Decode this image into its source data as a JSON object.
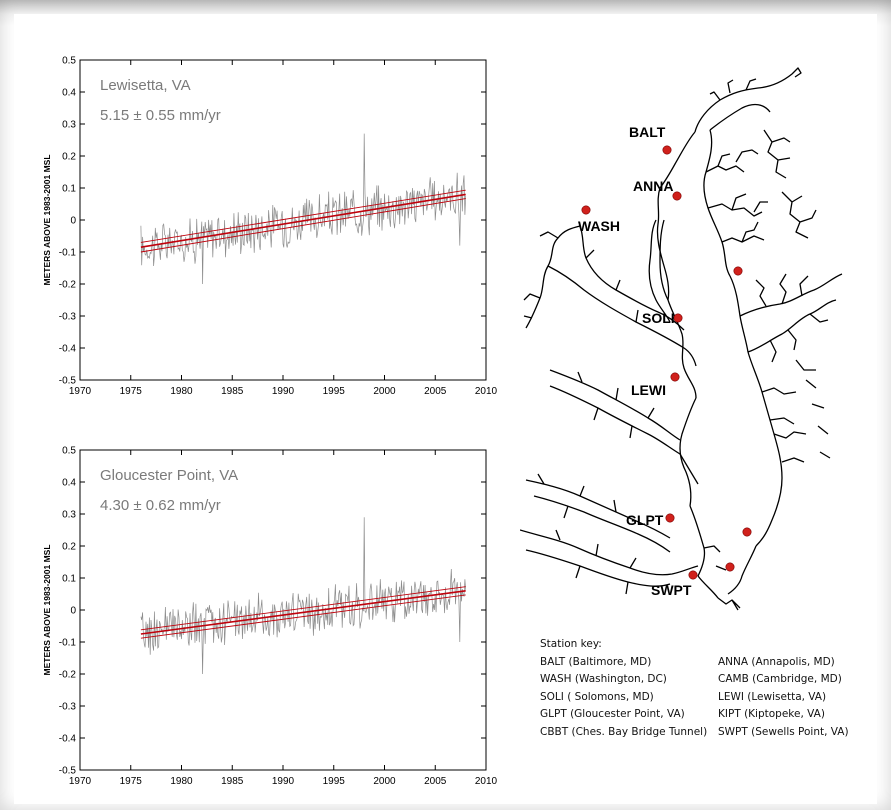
{
  "chart_data": [
    {
      "type": "line",
      "inset_title": "Lewisetta, VA",
      "inset_rate": "5.15 ± 0.55 mm/yr",
      "ylabel": "METERS ABOVE 1983-2001 MSL",
      "xlim": [
        1970,
        2010
      ],
      "ylim": [
        -0.5,
        0.5
      ],
      "x_ticks": [
        "1970",
        "1975",
        "1980",
        "1985",
        "1990",
        "1995",
        "2000",
        "2005",
        "2010"
      ],
      "y_ticks": [
        "0.5",
        "0.4",
        "0.3",
        "0.2",
        "0.1",
        "0",
        "-0.1",
        "-0.2",
        "-0.3",
        "-0.4",
        "-0.5"
      ],
      "series": [
        {
          "role": "monthly mean sea level",
          "color": "#8c8c8c",
          "x_range": [
            1976,
            2008
          ],
          "noise_amplitude": 0.06,
          "spikes": [
            {
              "x": 1998.0,
              "y": 0.27
            },
            {
              "x": 1982.1,
              "y": -0.2
            },
            {
              "x": 2007.4,
              "y": -0.08
            }
          ]
        },
        {
          "role": "linear trend",
          "color": "#c0000b",
          "x": [
            1976,
            2008
          ],
          "y": [
            -0.085,
            0.08
          ]
        },
        {
          "role": "upper confidence bound",
          "color": "#c0000b",
          "x": [
            1976,
            2008
          ],
          "y": [
            -0.07,
            0.093
          ]
        },
        {
          "role": "lower confidence bound",
          "color": "#c0000b",
          "x": [
            1976,
            2008
          ],
          "y": [
            -0.1,
            0.067
          ]
        }
      ]
    },
    {
      "type": "line",
      "inset_title": "Gloucester Point, VA",
      "inset_rate": "4.30 ± 0.62 mm/yr",
      "ylabel": "METERS ABOVE 1983-2001 MSL",
      "xlim": [
        1970,
        2010
      ],
      "ylim": [
        -0.5,
        0.5
      ],
      "x_ticks": [
        "1970",
        "1975",
        "1980",
        "1985",
        "1990",
        "1995",
        "2000",
        "2005",
        "2010"
      ],
      "y_ticks": [
        "0.5",
        "0.4",
        "0.3",
        "0.2",
        "0.1",
        "0",
        "-0.1",
        "-0.2",
        "-0.3",
        "-0.4",
        "-0.5"
      ],
      "series": [
        {
          "role": "monthly mean sea level",
          "color": "#8c8c8c",
          "x_range": [
            1976,
            2008
          ],
          "noise_amplitude": 0.06,
          "spikes": [
            {
              "x": 1998.0,
              "y": 0.29
            },
            {
              "x": 1982.1,
              "y": -0.2
            },
            {
              "x": 2007.4,
              "y": -0.1
            }
          ]
        },
        {
          "role": "linear trend",
          "color": "#c0000b",
          "x": [
            1976,
            2008
          ],
          "y": [
            -0.075,
            0.06
          ]
        },
        {
          "role": "upper confidence bound",
          "color": "#c0000b",
          "x": [
            1976,
            2008
          ],
          "y": [
            -0.062,
            0.073
          ]
        },
        {
          "role": "lower confidence bound",
          "color": "#c0000b",
          "x": [
            1976,
            2008
          ],
          "y": [
            -0.088,
            0.047
          ]
        }
      ]
    }
  ],
  "map": {
    "marker_color": "#d0211c",
    "stations": [
      {
        "code": "BALT"
      },
      {
        "code": "ANNA"
      },
      {
        "code": "WASH"
      },
      {
        "code": "CAMB"
      },
      {
        "code": "SOLI"
      },
      {
        "code": "LEWI"
      },
      {
        "code": "GLPT"
      },
      {
        "code": "KIPT"
      },
      {
        "code": "CBBT"
      },
      {
        "code": "SWPT"
      }
    ]
  },
  "station_key": {
    "title": "Station key:",
    "rows": [
      [
        "BALT (Baltimore, MD)",
        "ANNA (Annapolis, MD)"
      ],
      [
        "WASH (Washington, DC)",
        "CAMB (Cambridge, MD)"
      ],
      [
        "SOLI ( Solomons, MD)",
        "LEWI (Lewisetta, VA)"
      ],
      [
        "GLPT (Gloucester Point, VA)",
        "KIPT (Kiptopeke, VA)"
      ],
      [
        "CBBT (Ches. Bay Bridge Tunnel)",
        "SWPT (Sewells Point, VA)"
      ]
    ]
  }
}
